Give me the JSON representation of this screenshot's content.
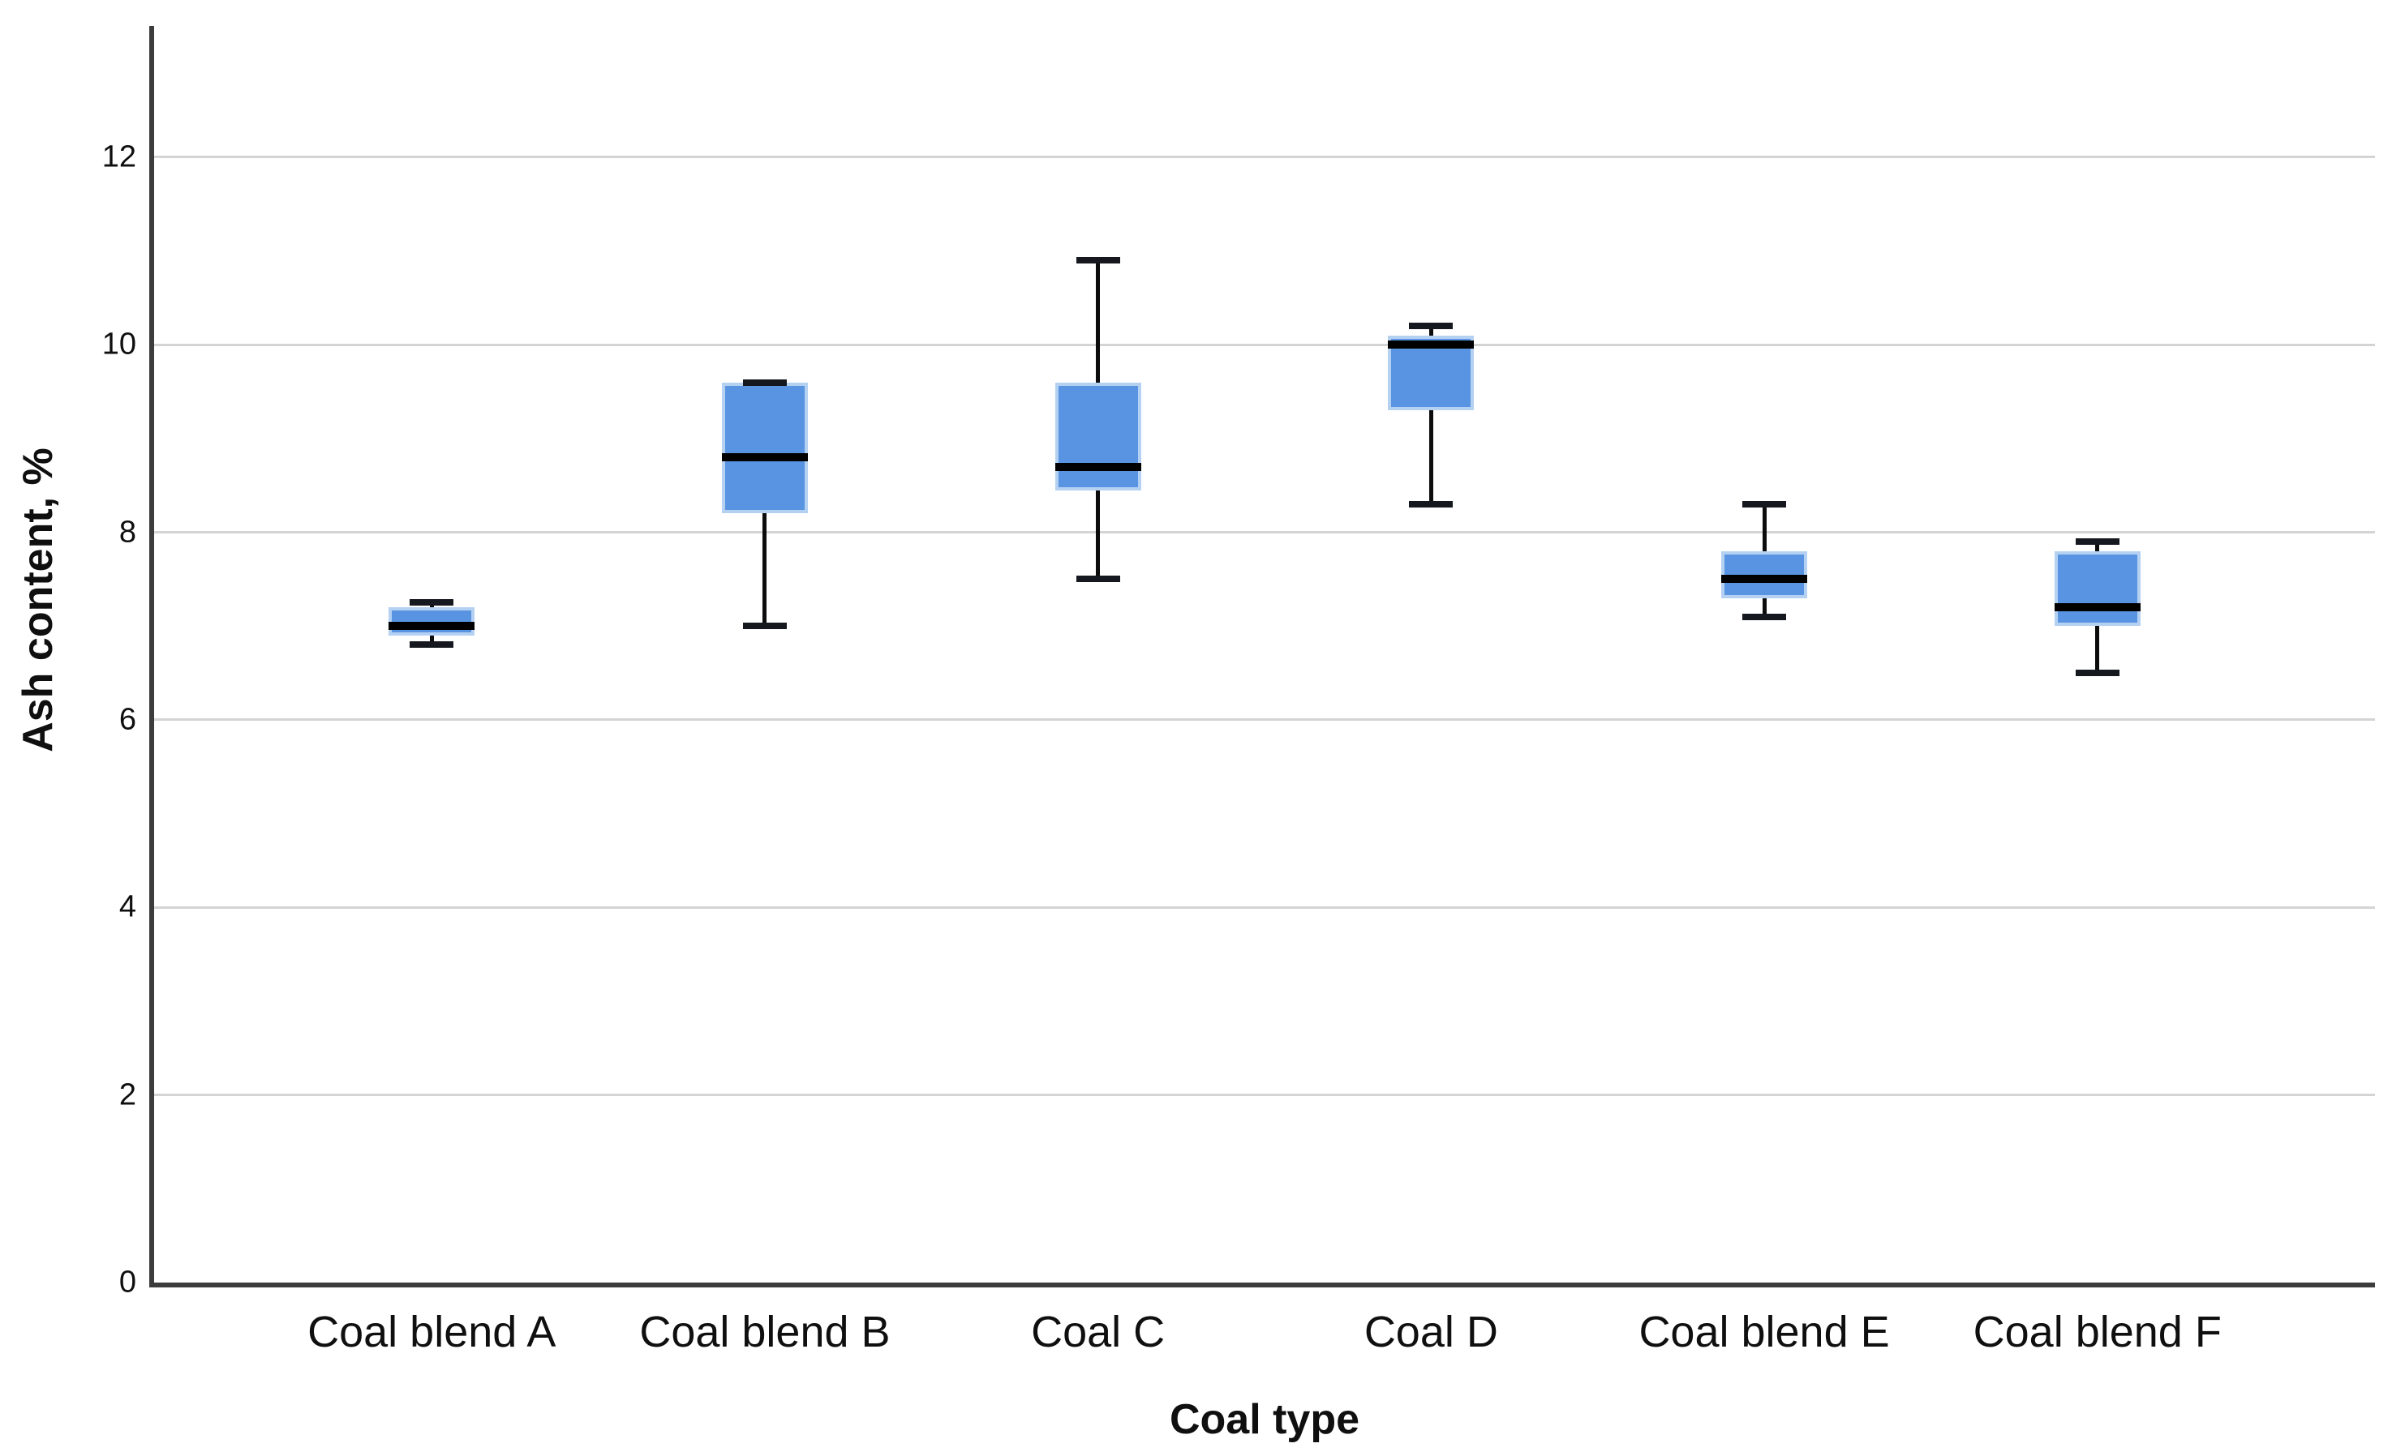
{
  "chart_data": {
    "type": "box",
    "title": "",
    "xlabel": "Coal type",
    "ylabel": "Ash content, %",
    "categories": [
      "Coal blend A",
      "Coal blend B",
      "Coal C",
      "Coal D",
      "Coal blend E",
      "Coal blend F"
    ],
    "series": [
      {
        "name": "Coal blend A",
        "whisker_low": 6.8,
        "q1": 6.9,
        "median": 7.0,
        "q3": 7.2,
        "whisker_high": 7.25
      },
      {
        "name": "Coal blend B",
        "whisker_low": 7.0,
        "q1": 8.2,
        "median": 8.8,
        "q3": 9.6,
        "whisker_high": 9.6
      },
      {
        "name": "Coal C",
        "whisker_low": 7.5,
        "q1": 8.45,
        "median": 8.7,
        "q3": 9.6,
        "whisker_high": 10.9
      },
      {
        "name": "Coal D",
        "whisker_low": 8.3,
        "q1": 9.3,
        "median": 10.0,
        "q3": 10.1,
        "whisker_high": 10.2
      },
      {
        "name": "Coal blend E",
        "whisker_low": 7.1,
        "q1": 7.3,
        "median": 7.5,
        "q3": 7.8,
        "whisker_high": 8.3
      },
      {
        "name": "Coal blend F",
        "whisker_low": 6.5,
        "q1": 7.0,
        "median": 7.2,
        "q3": 7.8,
        "whisker_high": 7.9
      }
    ],
    "ylim": [
      0,
      13.4
    ],
    "yticks": [
      0,
      2,
      4,
      6,
      8,
      10,
      12
    ],
    "grid": true,
    "legend": "none",
    "colors": {
      "box_fill": "#5894E2",
      "box_border": "#B5D1F2",
      "median": "#000000",
      "whisker": "#0c0c0c",
      "whisker_cap": "#15181e",
      "gridline": "#D4D4D4",
      "axis": "#3C3C3C",
      "text": "#0f0f0f",
      "background": "#ffffff"
    }
  }
}
